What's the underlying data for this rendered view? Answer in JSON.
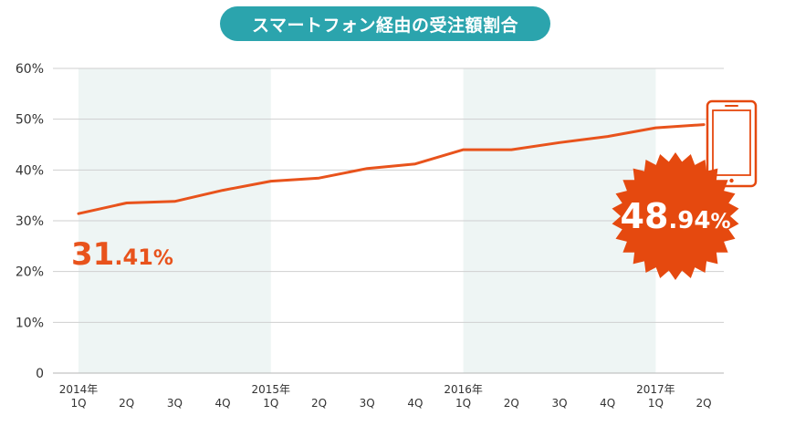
{
  "title": "スマートフォン経由の受注額割合",
  "colors": {
    "title_bg": "#2ba4ad",
    "line": "#e8531c",
    "shade": "#eef5f4",
    "grid": "#cfcfcf",
    "badge": "#e5490f"
  },
  "chart_data": {
    "type": "line",
    "title": "スマートフォン経由の受注額割合",
    "xlabel": "",
    "ylabel": "",
    "ylim": [
      0,
      60
    ],
    "yticks": [
      {
        "value": 0,
        "label": "0"
      },
      {
        "value": 10,
        "label": "10%"
      },
      {
        "value": 20,
        "label": "20%"
      },
      {
        "value": 30,
        "label": "30%"
      },
      {
        "value": 40,
        "label": "40%"
      },
      {
        "value": 50,
        "label": "50%"
      },
      {
        "value": 60,
        "label": "60%"
      }
    ],
    "grid": true,
    "categories": [
      {
        "year": "2014年",
        "q": "1Q"
      },
      {
        "year": "",
        "q": "2Q"
      },
      {
        "year": "",
        "q": "3Q"
      },
      {
        "year": "",
        "q": "4Q"
      },
      {
        "year": "2015年",
        "q": "1Q"
      },
      {
        "year": "",
        "q": "2Q"
      },
      {
        "year": "",
        "q": "3Q"
      },
      {
        "year": "",
        "q": "4Q"
      },
      {
        "year": "2016年",
        "q": "1Q"
      },
      {
        "year": "",
        "q": "2Q"
      },
      {
        "year": "",
        "q": "3Q"
      },
      {
        "year": "",
        "q": "4Q"
      },
      {
        "year": "2017年",
        "q": "1Q"
      },
      {
        "year": "",
        "q": "2Q"
      }
    ],
    "series": [
      {
        "values": [
          31.41,
          33.5,
          33.8,
          36.0,
          37.8,
          38.4,
          40.3,
          41.2,
          44.0,
          44.0,
          45.4,
          46.6,
          48.3,
          48.94
        ]
      }
    ],
    "shaded_years": [
      "2014年",
      "2016年"
    ],
    "callouts": {
      "start": {
        "int": "31",
        "dec": ".41",
        "unit": "%"
      },
      "end": {
        "int": "48",
        "dec": ".94",
        "unit": "%"
      }
    }
  }
}
